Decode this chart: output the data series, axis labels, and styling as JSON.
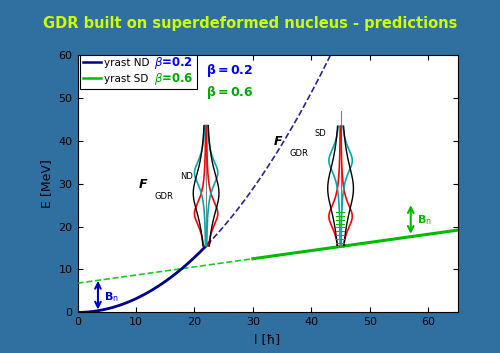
{
  "title": "GDR built on superdeformed nucleus - predictions",
  "title_color": "#CCFF00",
  "bg_color": "#3070A0",
  "plot_bg": "#ffffff",
  "xlabel": "l [ħ]",
  "ylabel": "E [MeV]",
  "xlim": [
    0,
    65
  ],
  "ylim": [
    0,
    60
  ],
  "xticks": [
    0,
    10,
    20,
    30,
    40,
    50,
    60
  ],
  "yticks": [
    0,
    10,
    20,
    30,
    40,
    50,
    60
  ],
  "nd_color": "#00008B",
  "sd_color": "#00BB00",
  "Bn_value": 8.0,
  "l_ND": 22,
  "l_SD": 45,
  "a_nd": 0.032,
  "sd_start_l": 30,
  "sd_E0": 12.5,
  "sd_slope": 0.19,
  "Bn_blue_x": 3.5,
  "Bn_green_x": 57
}
